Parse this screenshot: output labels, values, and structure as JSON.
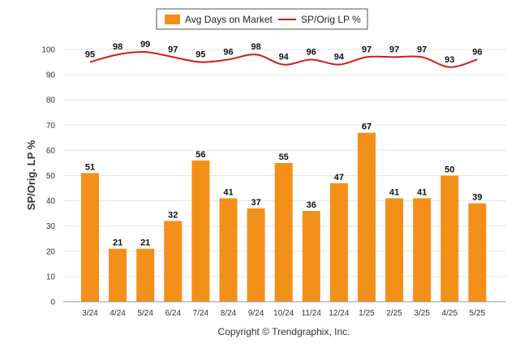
{
  "chart_data": {
    "type": "bar",
    "categories": [
      "3/24",
      "4/24",
      "5/24",
      "6/24",
      "7/24",
      "8/24",
      "9/24",
      "10/24",
      "11/24",
      "12/24",
      "1/25",
      "2/25",
      "3/25",
      "4/25",
      "5/25"
    ],
    "series": [
      {
        "name": "Avg Days on Market",
        "type": "bar",
        "color": "#f39019",
        "values": [
          51,
          21,
          21,
          32,
          56,
          41,
          37,
          55,
          36,
          47,
          67,
          41,
          41,
          50,
          39
        ]
      },
      {
        "name": "SP/Orig LP %",
        "type": "line",
        "color": "#cc1f1f",
        "values": [
          95,
          98,
          99,
          97,
          95,
          96,
          98,
          94,
          96,
          94,
          97,
          97,
          97,
          93,
          96
        ]
      }
    ],
    "ylabel": "SP/Orig. LP %",
    "ylim": [
      0,
      100
    ],
    "yticks": [
      0,
      10,
      20,
      30,
      40,
      50,
      60,
      70,
      80,
      90,
      100
    ],
    "grid": true,
    "legend_placement": "top-center"
  },
  "footer": {
    "copyright": "Copyright © Trendgraphix, Inc."
  }
}
